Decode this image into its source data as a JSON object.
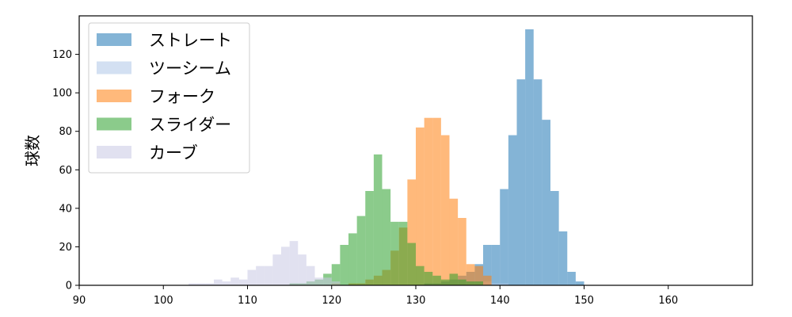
{
  "chart_data": {
    "type": "histogram",
    "xlabel": "",
    "ylabel": "球数",
    "xlim": [
      90,
      170
    ],
    "ylim": [
      0,
      140
    ],
    "xticks": [
      90,
      100,
      110,
      120,
      130,
      140,
      150,
      160
    ],
    "yticks": [
      0,
      20,
      40,
      60,
      80,
      100,
      120
    ],
    "grid": false,
    "legend_position": "top-left",
    "bin_width": 1,
    "series": [
      {
        "name": "ストレート",
        "color": "#1f77b4",
        "bins": [
          [
            131,
            1
          ],
          [
            132,
            1
          ],
          [
            133,
            2
          ],
          [
            134,
            3
          ],
          [
            135,
            5
          ],
          [
            136,
            7
          ],
          [
            137,
            11
          ],
          [
            138,
            21
          ],
          [
            139,
            21
          ],
          [
            140,
            50
          ],
          [
            141,
            78
          ],
          [
            142,
            107
          ],
          [
            143,
            133
          ],
          [
            144,
            107
          ],
          [
            145,
            86
          ],
          [
            146,
            49
          ],
          [
            147,
            28
          ],
          [
            148,
            7
          ],
          [
            149,
            2
          ]
        ]
      },
      {
        "name": "ツーシーム",
        "color": "#aec7e8",
        "bins": [
          [
            136,
            1
          ],
          [
            137,
            1
          ],
          [
            138,
            2
          ],
          [
            139,
            1
          ],
          [
            140,
            1
          ]
        ]
      },
      {
        "name": "フォーク",
        "color": "#ff7f0e",
        "bins": [
          [
            120,
            1
          ],
          [
            122,
            1
          ],
          [
            123,
            1
          ],
          [
            124,
            3
          ],
          [
            125,
            5
          ],
          [
            126,
            8
          ],
          [
            127,
            18
          ],
          [
            128,
            30
          ],
          [
            129,
            55
          ],
          [
            130,
            82
          ],
          [
            131,
            87
          ],
          [
            132,
            87
          ],
          [
            133,
            78
          ],
          [
            134,
            45
          ],
          [
            135,
            35
          ],
          [
            136,
            11
          ],
          [
            137,
            10
          ],
          [
            138,
            5
          ]
        ]
      },
      {
        "name": "スライダー",
        "color": "#2ca02c",
        "bins": [
          [
            115,
            1
          ],
          [
            116,
            1
          ],
          [
            117,
            2
          ],
          [
            118,
            3
          ],
          [
            119,
            6
          ],
          [
            120,
            11
          ],
          [
            121,
            21
          ],
          [
            122,
            27
          ],
          [
            123,
            36
          ],
          [
            124,
            49
          ],
          [
            125,
            68
          ],
          [
            126,
            50
          ],
          [
            127,
            33
          ],
          [
            128,
            33
          ],
          [
            129,
            22
          ],
          [
            130,
            10
          ],
          [
            131,
            7
          ],
          [
            132,
            5
          ],
          [
            133,
            3
          ],
          [
            134,
            6
          ],
          [
            135,
            3
          ],
          [
            136,
            2
          ],
          [
            137,
            2
          ]
        ]
      },
      {
        "name": "カーブ",
        "color": "#c9c9e4",
        "bins": [
          [
            103,
            1
          ],
          [
            104,
            1
          ],
          [
            105,
            1
          ],
          [
            106,
            3
          ],
          [
            107,
            2
          ],
          [
            108,
            4
          ],
          [
            109,
            3
          ],
          [
            110,
            8
          ],
          [
            111,
            10
          ],
          [
            112,
            10
          ],
          [
            113,
            16
          ],
          [
            114,
            20
          ],
          [
            115,
            23
          ],
          [
            116,
            16
          ],
          [
            117,
            10
          ],
          [
            118,
            4
          ],
          [
            119,
            4
          ],
          [
            120,
            2
          ]
        ]
      }
    ]
  }
}
